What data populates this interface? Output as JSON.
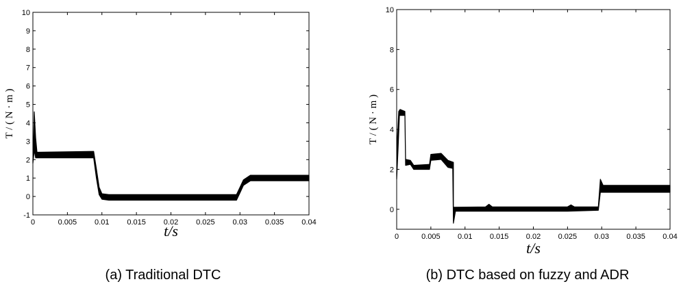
{
  "chart_data": [
    {
      "type": "line",
      "caption": "(a) Traditional DTC",
      "xlabel": "t/s",
      "ylabel": "T / ( N · m )",
      "xlim": [
        0,
        0.04
      ],
      "ylim": [
        -1,
        10
      ],
      "xticks": [
        0,
        0.005,
        0.01,
        0.015,
        0.02,
        0.025,
        0.03,
        0.035,
        0.04
      ],
      "xtick_labels": [
        "0",
        "0.005",
        "0.01",
        "0.015",
        "0.02",
        "0.025",
        "0.03",
        "0.035",
        "0.04"
      ],
      "yticks": [
        -1,
        0,
        1,
        2,
        3,
        4,
        5,
        6,
        7,
        8,
        9,
        10
      ],
      "ytick_labels": [
        "-1",
        "0",
        "1",
        "2",
        "3",
        "4",
        "5",
        "6",
        "7",
        "8",
        "9",
        "10"
      ],
      "grid": false,
      "series": [
        {
          "upper": [
            [
              0,
              2.0
            ],
            [
              0.0001,
              3.0
            ],
            [
              0.0002,
              4.6
            ],
            [
              0.0004,
              3.2
            ],
            [
              0.0006,
              2.4
            ],
            [
              0.0088,
              2.45
            ],
            [
              0.0092,
              1.5
            ],
            [
              0.0096,
              0.5
            ],
            [
              0.01,
              0.15
            ],
            [
              0.011,
              0.1
            ],
            [
              0.0295,
              0.1
            ],
            [
              0.03,
              0.5
            ],
            [
              0.0305,
              0.9
            ],
            [
              0.0315,
              1.15
            ],
            [
              0.04,
              1.15
            ]
          ],
          "lower": [
            [
              0,
              1.8
            ],
            [
              0.0002,
              2.5
            ],
            [
              0.0004,
              2.1
            ],
            [
              0.0088,
              2.1
            ],
            [
              0.0092,
              1.0
            ],
            [
              0.0096,
              0.1
            ],
            [
              0.01,
              -0.15
            ],
            [
              0.011,
              -0.2
            ],
            [
              0.0295,
              -0.2
            ],
            [
              0.03,
              0.2
            ],
            [
              0.0305,
              0.6
            ],
            [
              0.0315,
              0.85
            ],
            [
              0.04,
              0.85
            ]
          ]
        }
      ]
    },
    {
      "type": "line",
      "caption": "(b) DTC based on fuzzy and ADR",
      "xlabel": "t/s",
      "ylabel": "T / ( N · m )",
      "xlim": [
        0,
        0.04
      ],
      "ylim": [
        -1,
        10
      ],
      "xticks": [
        0,
        0.005,
        0.01,
        0.015,
        0.02,
        0.025,
        0.03,
        0.035,
        0.04
      ],
      "xtick_labels": [
        "0",
        "0.005",
        "0.01",
        "0.015",
        "0.02",
        "0.025",
        "0.03",
        "0.035",
        "0.04"
      ],
      "yticks": [
        0,
        2,
        4,
        6,
        8,
        10
      ],
      "ytick_labels": [
        "0",
        "2",
        "4",
        "6",
        "8",
        "10"
      ],
      "grid": false,
      "series": [
        {
          "upper": [
            [
              0,
              1.8
            ],
            [
              0.0001,
              3.5
            ],
            [
              0.0003,
              4.9
            ],
            [
              0.0005,
              5.0
            ],
            [
              0.0012,
              4.9
            ],
            [
              0.0013,
              2.5
            ],
            [
              0.002,
              2.45
            ],
            [
              0.0025,
              2.2
            ],
            [
              0.0048,
              2.25
            ],
            [
              0.005,
              2.75
            ],
            [
              0.0065,
              2.8
            ],
            [
              0.0075,
              2.45
            ],
            [
              0.0083,
              2.35
            ],
            [
              0.0083,
              0.1
            ],
            [
              0.013,
              0.12
            ],
            [
              0.0135,
              0.25
            ],
            [
              0.014,
              0.12
            ],
            [
              0.025,
              0.12
            ],
            [
              0.0255,
              0.22
            ],
            [
              0.026,
              0.12
            ],
            [
              0.0295,
              0.12
            ],
            [
              0.0298,
              1.5
            ],
            [
              0.0302,
              1.2
            ],
            [
              0.04,
              1.2
            ]
          ],
          "lower": [
            [
              0,
              1.5
            ],
            [
              0.0002,
              3.0
            ],
            [
              0.0004,
              4.7
            ],
            [
              0.0012,
              4.7
            ],
            [
              0.0013,
              2.2
            ],
            [
              0.002,
              2.25
            ],
            [
              0.0025,
              2.0
            ],
            [
              0.0048,
              2.0
            ],
            [
              0.005,
              2.45
            ],
            [
              0.0065,
              2.5
            ],
            [
              0.0075,
              2.1
            ],
            [
              0.0082,
              2.05
            ],
            [
              0.0083,
              -0.7
            ],
            [
              0.0086,
              -0.1
            ],
            [
              0.013,
              -0.1
            ],
            [
              0.025,
              -0.1
            ],
            [
              0.0295,
              -0.05
            ],
            [
              0.0298,
              0.85
            ],
            [
              0.04,
              0.85
            ]
          ]
        }
      ]
    }
  ]
}
